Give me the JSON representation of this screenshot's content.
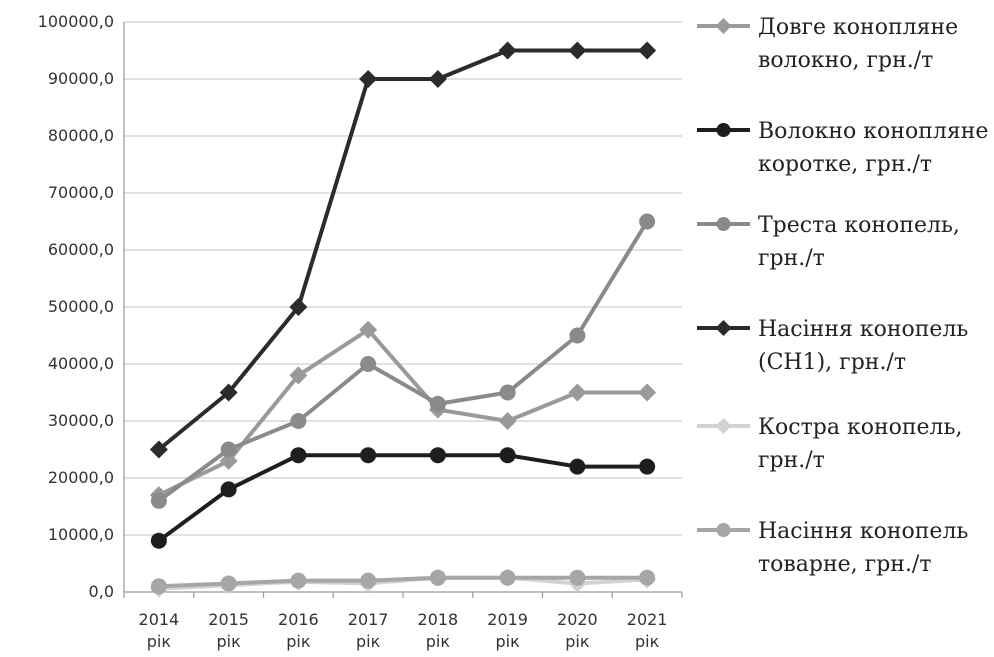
{
  "chart_data": {
    "type": "line",
    "categories": [
      [
        "2014",
        "рік"
      ],
      [
        "2015",
        "рік"
      ],
      [
        "2016",
        "рік"
      ],
      [
        "2017",
        "рік"
      ],
      [
        "2018",
        "рік"
      ],
      [
        "2019",
        "рік"
      ],
      [
        "2020",
        "рік"
      ],
      [
        "2021",
        "рік"
      ]
    ],
    "ylim": [
      0,
      100000
    ],
    "y_ticks": [
      "0,0",
      "10000,0",
      "20000,0",
      "30000,0",
      "40000,0",
      "50000,0",
      "60000,0",
      "70000,0",
      "80000,0",
      "90000,0",
      "100000,0"
    ],
    "y_tick_values": [
      0,
      10000,
      20000,
      30000,
      40000,
      50000,
      60000,
      70000,
      80000,
      90000,
      100000
    ],
    "grid": true,
    "legend_position": "right",
    "series": [
      {
        "name": [
          "Довге конопляне",
          "волокно, грн./т"
        ],
        "values": [
          17000,
          23000,
          38000,
          46000,
          32000,
          30000,
          35000,
          35000
        ],
        "color": "#9a9a9a",
        "marker": "diamond"
      },
      {
        "name": [
          "Волокно конопляне",
          "коротке, грн./т"
        ],
        "values": [
          9000,
          18000,
          24000,
          24000,
          24000,
          24000,
          22000,
          22000
        ],
        "color": "#1e1e1e",
        "marker": "circle"
      },
      {
        "name": [
          "Треста конопель,",
          "грн./т"
        ],
        "values": [
          16000,
          25000,
          30000,
          40000,
          33000,
          35000,
          45000,
          65000
        ],
        "color": "#8a8a8a",
        "marker": "circle"
      },
      {
        "name": [
          "Насіння конопель",
          "(СН1), грн./т"
        ],
        "values": [
          25000,
          35000,
          50000,
          90000,
          90000,
          95000,
          95000,
          95000
        ],
        "color": "#2b2b2b",
        "marker": "diamond"
      },
      {
        "name": [
          "Костра конопель,",
          "грн./т"
        ],
        "values": [
          600,
          1200,
          1800,
          1500,
          2500,
          2500,
          1500,
          2200
        ],
        "color": "#d2d2d2",
        "marker": "diamond"
      },
      {
        "name": [
          "Насіння конопель",
          "товарне, грн./т"
        ],
        "values": [
          1000,
          1500,
          2000,
          2000,
          2500,
          2500,
          2500,
          2500
        ],
        "color": "#a6a6a6",
        "marker": "circle"
      }
    ]
  }
}
